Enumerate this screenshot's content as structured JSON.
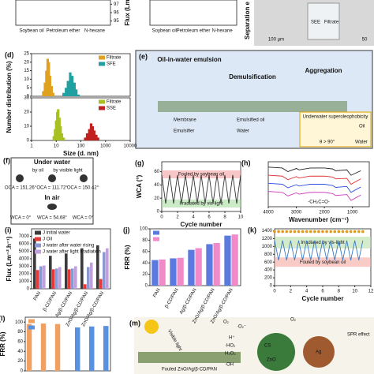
{
  "chart_data": [
    {
      "type": "bar",
      "y_label": "Flux",
      "categories": [
        "Soybean oil",
        "Petroleum ether",
        "N-hexane"
      ],
      "y2lim": [
        94.5,
        97.5
      ],
      "y2ticks": [
        95,
        96,
        97
      ]
    },
    {
      "type": "bar",
      "y_label": "Flux (Lm",
      "categories": [
        "Soybean oil",
        "Petroleum ether",
        "N-hexane"
      ]
    },
    {
      "type": "bar",
      "panel": "(d)",
      "y_label": "Number distribution (%)",
      "log_x": true,
      "xlim": [
        1,
        10000
      ],
      "ylim": [
        0,
        25
      ],
      "yticks": [
        0,
        5,
        10,
        15,
        20,
        25
      ],
      "legend": "upper right",
      "series": [
        {
          "name": "Filtrate",
          "color": "#e0a020",
          "x": [
            3,
            3.5,
            4,
            4.5,
            5,
            5.6,
            6.5,
            7.5
          ],
          "values": [
            3,
            8,
            15,
            22,
            20,
            12,
            6,
            2
          ]
        },
        {
          "name": "SFE",
          "color": "#20a0a0",
          "x": [
            20,
            25,
            30,
            37,
            45,
            55,
            65,
            80
          ],
          "values": [
            2,
            5,
            9,
            14,
            12,
            8,
            4,
            1
          ]
        }
      ]
    },
    {
      "type": "bar",
      "x_label": "Size (d. nm)",
      "log_x": true,
      "xlim": [
        1,
        10000
      ],
      "xticks": [
        1,
        10,
        100,
        1000,
        10000
      ],
      "ylim": [
        0,
        30
      ],
      "yticks": [
        0,
        10,
        20,
        30
      ],
      "legend": "upper right",
      "series": [
        {
          "name": "Filtrate",
          "color": "#a8c020",
          "x": [
            8,
            9,
            10,
            11,
            12,
            13.5,
            15,
            17,
            20
          ],
          "values": [
            3,
            8,
            14,
            20,
            22,
            16,
            10,
            5,
            2
          ]
        },
        {
          "name": "SSE",
          "color": "#c02020",
          "x": [
            150,
            180,
            220,
            260,
            300,
            350,
            420,
            500
          ],
          "values": [
            2,
            5,
            8,
            12,
            10,
            7,
            4,
            2
          ]
        }
      ]
    },
    {
      "type": "line",
      "panel": "(g)",
      "x_label": "Cycle number",
      "y_label": "WCA (°)",
      "xlim": [
        0,
        10
      ],
      "xticks": [
        0,
        2,
        4,
        6,
        8,
        10
      ],
      "ylim": [
        0,
        75
      ],
      "yticks": [
        0,
        20,
        40,
        60
      ],
      "bands": [
        {
          "label": "Fouled by soybean oil",
          "range": [
            50,
            62
          ],
          "color": "#f4a0a0"
        },
        {
          "label": "Irradiated by vis-light",
          "range": [
            6,
            18
          ],
          "color": "#a8dca0"
        }
      ],
      "x": [
        0,
        0.5,
        1,
        1.5,
        2,
        2.5,
        3,
        3.5,
        4,
        4.5,
        5,
        5.5,
        6,
        6.5,
        7,
        7.5,
        8,
        8.5,
        9,
        9.5,
        10
      ],
      "series": [
        {
          "color": "#333333",
          "values": [
            55,
            12,
            55,
            12,
            55,
            12,
            55,
            12,
            55,
            12,
            55,
            12,
            55,
            12,
            55,
            12,
            55,
            12,
            55,
            12,
            55
          ]
        }
      ]
    },
    {
      "type": "line",
      "panel": "(h)",
      "x_label": "Wavenumber (cm⁻¹)",
      "annotation": "-CH₂C=O-",
      "xlim": [
        4000,
        400
      ],
      "xticks": [
        4000,
        3000,
        2000,
        1000
      ],
      "ylim": [
        0,
        100
      ],
      "x": [
        4000,
        3500,
        3300,
        3000,
        2900,
        2500,
        2000,
        1700,
        1600,
        1200,
        1050,
        700
      ],
      "series": [
        {
          "color": "#222222",
          "values": [
            88,
            86,
            78,
            85,
            82,
            86,
            86,
            84,
            80,
            82,
            70,
            80
          ]
        },
        {
          "color": "#e03030",
          "values": [
            70,
            68,
            60,
            67,
            64,
            68,
            68,
            66,
            62,
            63,
            50,
            62
          ]
        },
        {
          "color": "#3050e0",
          "values": [
            52,
            50,
            42,
            49,
            46,
            50,
            50,
            47,
            43,
            45,
            32,
            44
          ]
        },
        {
          "color": "#d040c0",
          "values": [
            34,
            32,
            24,
            31,
            28,
            32,
            32,
            29,
            25,
            27,
            14,
            26
          ]
        }
      ]
    },
    {
      "type": "bar",
      "panel": "(i)",
      "y_label": "Flux (Lm⁻².h⁻¹)",
      "legend": "upper left",
      "ylim": [
        0,
        8000
      ],
      "yticks": [
        0,
        1000,
        2000,
        3000,
        4000,
        5000,
        6000,
        7000
      ],
      "categories": [
        "PAN",
        "β-CD/PAN",
        "Ag/β-CD/PAN",
        "ZnO/Ag/β-CD/PAN",
        "ZnO/Ag/β-CD/PAN"
      ],
      "series": [
        {
          "name": "J initial water",
          "color": "#3a3a3a",
          "values": [
            6700,
            4400,
            4700,
            5400,
            5800
          ]
        },
        {
          "name": "J Oil",
          "color": "#e03a3a",
          "values": [
            2500,
            2600,
            2600,
            600,
            1300
          ]
        },
        {
          "name": "J water after water rising",
          "color": "#8a9ad0",
          "values": [
            3000,
            2700,
            2700,
            2900,
            4900
          ]
        },
        {
          "name": "J water after light irradiation",
          "color": "#c0a0d8",
          "values": [
            3100,
            2900,
            3000,
            3500,
            5400
          ]
        }
      ]
    },
    {
      "type": "bar",
      "panel": "(j)",
      "y_label": "FRR (%)",
      "legend": "upper left",
      "ylim": [
        0,
        100
      ],
      "yticks": [
        0,
        20,
        40,
        60,
        80,
        100
      ],
      "categories": [
        "PAN",
        "β-CD/PAN",
        "Ag/β-CD/PAN",
        "ZnO/Ag/β-CD/PAN",
        "ZnO/Ag/β-CD/PAN"
      ],
      "series": [
        {
          "color": "#5a7ae0",
          "values": [
            45,
            48,
            63,
            73,
            88
          ]
        },
        {
          "color": "#f08ac8",
          "values": [
            46,
            49,
            66,
            75,
            90
          ]
        }
      ]
    },
    {
      "type": "line",
      "panel": "(k)",
      "x_label": "Cycle number",
      "xlim": [
        0,
        12
      ],
      "xticks": [
        0,
        2,
        4,
        6,
        8,
        10,
        12
      ],
      "ylim": [
        0,
        1450
      ],
      "yticks": [
        0,
        200,
        400,
        600,
        800,
        1000,
        1200,
        1400
      ],
      "bands": [
        {
          "label": "Irradiated by vis-light",
          "range": [
            950,
            1250
          ],
          "color": "#b8e0a8"
        },
        {
          "label": "Fouled by soybean oil",
          "range": [
            480,
            720
          ],
          "color": "#f4a8a0"
        }
      ],
      "x": [
        0,
        0.5,
        1,
        1.5,
        2,
        2.5,
        3,
        3.5,
        4,
        4.5,
        5,
        5.5,
        6,
        6.5,
        7,
        7.5,
        8,
        8.5,
        9,
        9.5,
        10,
        10.5,
        11
      ],
      "series": [
        {
          "color": "#3a7ac8",
          "values": [
            1150,
            650,
            1150,
            650,
            1150,
            650,
            1150,
            650,
            1150,
            650,
            1150,
            650,
            1150,
            650,
            1150,
            650,
            1150,
            650,
            1150,
            650,
            1150,
            650,
            1150
          ]
        },
        {
          "color": "#e09a20",
          "marker": true,
          "values": [
            1380,
            1380,
            1380,
            1380,
            1380,
            1380,
            1380,
            1380,
            1380,
            1380,
            1380,
            1380,
            1380,
            1380,
            1380,
            1380,
            1380,
            1380,
            1380,
            1380,
            1380,
            1380,
            1380
          ]
        }
      ]
    },
    {
      "type": "bar",
      "panel": "(l)",
      "y_label": "FRR (%)",
      "legend": "upper left",
      "ylim": [
        0,
        110
      ],
      "yticks": [
        0,
        20,
        40,
        60,
        80,
        100
      ],
      "categories": [
        null,
        null,
        null,
        null,
        null,
        null
      ],
      "series": [
        {
          "color": "#f0a060",
          "values": [
            96,
            97,
            96,
            null,
            null,
            null
          ]
        },
        {
          "color": "#5a90e0",
          "values": [
            null,
            null,
            null,
            89,
            91,
            92
          ]
        }
      ]
    }
  ],
  "diagrams": {
    "top_right": {
      "y_label": "Separation e",
      "left": "SEE",
      "right": "Filtrate",
      "scale_1": "100 μm",
      "scale_2": "50"
    },
    "e": {
      "panel": "(e)",
      "t1": "Oil-in-water emulsion",
      "t2": "Demulsification",
      "t3": "Aggregation",
      "legend": [
        "Membrane",
        "Emulsified oil",
        "Emulsifier",
        "Water"
      ],
      "inset_title": "Underwater superoleophobicity",
      "oil": "Oil",
      "angle": "θ > 90°",
      "water": "Water"
    },
    "f": {
      "panel": "(f)",
      "under_water": "Under water",
      "by_oil": "by oil",
      "by_light": "by visible light",
      "oca": [
        "OCA = 151.26°",
        "OCA = 111.72°",
        "OCA = 150.42°"
      ],
      "in_air": "In air",
      "wca": [
        "WCA = 0°",
        "WCA = 54.68°",
        "WCA = 0°"
      ]
    },
    "m": {
      "panel": "(m)",
      "light": "Visible light",
      "o2a": "O₂",
      "o2b": "O₂",
      "o2r": "·O₂⁻",
      "h": "H⁺",
      "ho2": "·HO₂",
      "h2o2": "H₂O₂",
      "oh": "·OH",
      "cs": "CS",
      "zno": "ZnO",
      "ag": "Ag",
      "spr": "SPR effect",
      "membrane": "Fouled ZnO/Ag/β-CD/PAN"
    }
  }
}
